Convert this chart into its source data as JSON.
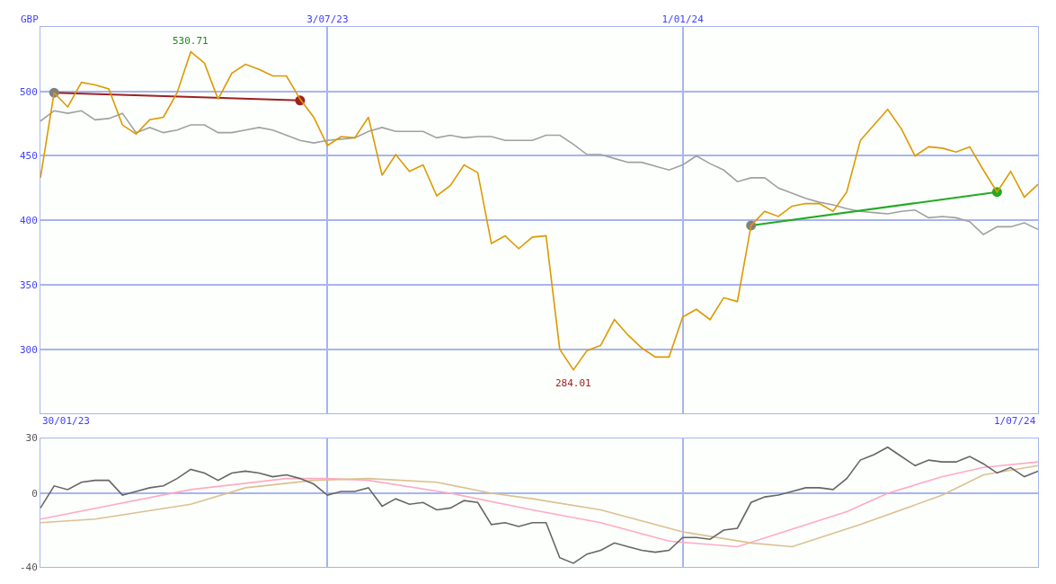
{
  "chart_data": [
    {
      "type": "line",
      "ylabel": "GBP",
      "x": [
        "2023-02-06",
        "2023-02-13",
        "2023-02-20",
        "2023-02-27",
        "2023-03-06",
        "2023-03-13",
        "2023-03-20",
        "2023-03-27",
        "2023-04-03",
        "2023-04-10",
        "2023-04-17",
        "2023-04-24",
        "2023-05-01",
        "2023-05-08",
        "2023-05-15",
        "2023-05-22",
        "2023-05-29",
        "2023-06-05",
        "2023-06-12",
        "2023-06-19",
        "2023-06-26",
        "2023-07-03",
        "2023-07-10",
        "2023-07-17",
        "2023-07-24",
        "2023-07-31",
        "2023-08-07",
        "2023-08-14",
        "2023-08-21",
        "2023-08-28",
        "2023-09-04",
        "2023-09-11",
        "2023-09-18",
        "2023-09-25",
        "2023-10-02",
        "2023-10-09",
        "2023-10-16",
        "2023-10-23",
        "2023-10-30",
        "2023-11-06",
        "2023-11-13",
        "2023-11-20",
        "2023-11-27",
        "2023-12-04",
        "2023-12-11",
        "2023-12-18",
        "2023-12-25",
        "2024-01-01",
        "2024-01-08",
        "2024-01-15",
        "2024-01-22",
        "2024-01-29",
        "2024-02-05",
        "2024-02-12",
        "2024-02-19",
        "2024-02-26",
        "2024-03-04",
        "2024-03-11",
        "2024-03-18",
        "2024-03-25",
        "2024-04-01",
        "2024-04-08",
        "2024-04-15",
        "2024-04-22",
        "2024-04-29",
        "2024-05-06",
        "2024-05-13",
        "2024-05-20",
        "2024-05-27",
        "2024-06-03",
        "2024-06-10",
        "2024-06-17",
        "2024-06-24",
        "2024-07-01"
      ],
      "series": [
        {
          "color": "#a0a0a0",
          "values": [
            477,
            485,
            483,
            485,
            478,
            479,
            483,
            468,
            472,
            468,
            470,
            474,
            474,
            468,
            468,
            470,
            472,
            470,
            466,
            462,
            460,
            462,
            463,
            464,
            469,
            472,
            469,
            469,
            469,
            464,
            466,
            464,
            465,
            465,
            462,
            462,
            462,
            466,
            466,
            459,
            451,
            451,
            448,
            445,
            445,
            442,
            439,
            443,
            450,
            444,
            439,
            430,
            433,
            433,
            425,
            421,
            417,
            414,
            412,
            409,
            407,
            406,
            405,
            407,
            408,
            402,
            403,
            402,
            399,
            389,
            395,
            395,
            398,
            393
          ]
        },
        {
          "color": "#a02020",
          "x": [
            "2023-02-13",
            "2023-06-19"
          ],
          "values": [
            499,
            493
          ],
          "marker": "circle",
          "colors": [
            "#808080",
            "#a02020"
          ]
        },
        {
          "color": "#22aa22",
          "x": [
            "2024-02-05",
            "2024-06-10"
          ],
          "values": [
            396,
            422
          ],
          "marker": "circle",
          "colors": [
            "#808080",
            "#22aa22"
          ]
        },
        {
          "color": "#dd9900",
          "values": [
            433,
            499,
            488,
            507,
            505,
            502,
            474,
            467,
            478,
            480,
            499,
            530.71,
            522,
            494,
            514,
            521,
            517,
            512,
            512,
            494,
            480,
            458,
            465,
            464,
            480,
            435,
            451,
            438,
            443,
            419,
            427,
            443,
            437,
            382,
            388,
            378,
            387,
            388,
            300,
            284.01,
            299,
            303,
            323,
            311,
            301,
            294,
            294,
            325,
            331,
            323,
            340,
            337,
            396,
            407,
            403,
            411,
            413,
            413,
            407,
            422,
            462,
            474,
            486,
            471,
            450,
            457,
            456,
            453,
            457,
            439,
            422,
            438,
            418,
            428
          ]
        }
      ],
      "xlim": [
        "2023-02-06",
        "2024-07-01"
      ],
      "xticks": [
        {
          "value": "2023-07-03",
          "label": "3/07/23"
        },
        {
          "value": "2024-01-01",
          "label": "1/01/24"
        }
      ],
      "ylim": [
        250,
        550
      ],
      "yticks": [
        300,
        350,
        400,
        450,
        500
      ],
      "grid": true,
      "annotations": [
        {
          "text": "530.71",
          "x": "2023-04-24",
          "y": 530.71
        },
        {
          "text": "284.01",
          "x": "2023-11-06",
          "y": 284.01
        },
        "30/01/23",
        "1/07/24"
      ]
    },
    {
      "type": "line",
      "x": [
        "2023-02-06",
        "2023-02-13",
        "2023-02-20",
        "2023-02-27",
        "2023-03-06",
        "2023-03-13",
        "2023-03-20",
        "2023-03-27",
        "2023-04-03",
        "2023-04-10",
        "2023-04-17",
        "2023-04-24",
        "2023-05-01",
        "2023-05-08",
        "2023-05-15",
        "2023-05-22",
        "2023-05-29",
        "2023-06-05",
        "2023-06-12",
        "2023-06-19",
        "2023-06-26",
        "2023-07-03",
        "2023-07-10",
        "2023-07-17",
        "2023-07-24",
        "2023-07-31",
        "2023-08-07",
        "2023-08-14",
        "2023-08-21",
        "2023-08-28",
        "2023-09-04",
        "2023-09-11",
        "2023-09-18",
        "2023-09-25",
        "2023-10-02",
        "2023-10-09",
        "2023-10-16",
        "2023-10-23",
        "2023-10-30",
        "2023-11-06",
        "2023-11-13",
        "2023-11-20",
        "2023-11-27",
        "2023-12-04",
        "2023-12-11",
        "2023-12-18",
        "2023-12-25",
        "2024-01-01",
        "2024-01-08",
        "2024-01-15",
        "2024-01-22",
        "2024-01-29",
        "2024-02-05",
        "2024-02-12",
        "2024-02-19",
        "2024-02-26",
        "2024-03-04",
        "2024-03-11",
        "2024-03-18",
        "2024-03-25",
        "2024-04-01",
        "2024-04-08",
        "2024-04-15",
        "2024-04-22",
        "2024-04-29",
        "2024-05-06",
        "2024-05-13",
        "2024-05-20",
        "2024-05-27",
        "2024-06-03",
        "2024-06-10",
        "2024-06-17",
        "2024-06-24",
        "2024-07-01"
      ],
      "series": [
        {
          "color": "#ffaac4",
          "x": [
            "2023-02-06",
            "2023-04-24",
            "2023-06-12",
            "2023-07-03",
            "2023-07-24",
            "2023-09-04",
            "2023-10-16",
            "2023-11-20",
            "2023-12-25",
            "2024-01-29",
            "2024-03-25",
            "2024-04-15",
            "2024-05-13",
            "2024-06-03",
            "2024-07-01"
          ],
          "values": [
            -14,
            2,
            8,
            8,
            7,
            0,
            -9,
            -16,
            -26,
            -29,
            -10,
            0,
            9,
            14,
            17
          ]
        },
        {
          "color": "#dcc090",
          "x": [
            "2023-02-06",
            "2023-03-06",
            "2023-04-24",
            "2023-05-22",
            "2023-06-26",
            "2023-07-24",
            "2023-08-28",
            "2023-09-25",
            "2023-10-16",
            "2023-11-20",
            "2024-01-01",
            "2024-02-05",
            "2024-02-26",
            "2024-04-01",
            "2024-05-13",
            "2024-06-03",
            "2024-07-01"
          ],
          "values": [
            -16,
            -14,
            -6,
            3,
            7,
            8,
            6,
            0,
            -3,
            -9,
            -21,
            -27,
            -29,
            -17,
            -1,
            10,
            15
          ]
        },
        {
          "color": "#666666",
          "values": [
            -8,
            4,
            2,
            6,
            7,
            7,
            -1,
            1,
            3,
            4,
            8,
            13,
            11,
            7,
            11,
            12,
            11,
            9,
            10,
            8,
            5,
            -1,
            1,
            1,
            3,
            -7,
            -3,
            -6,
            -5,
            -9,
            -8,
            -4,
            -5,
            -17,
            -16,
            -18,
            -16,
            -16,
            -35,
            -38,
            -33,
            -31,
            -27,
            -29,
            -31,
            -32,
            -31,
            -24,
            -24,
            -25,
            -20,
            -19,
            -5,
            -2,
            -1,
            1,
            3,
            3,
            2,
            8,
            18,
            21,
            25,
            20,
            15,
            18,
            17,
            17,
            20,
            16,
            11,
            14,
            9,
            12
          ]
        }
      ],
      "xlim": [
        "2023-02-06",
        "2024-07-01"
      ],
      "xticks": [
        {
          "value": "2023-07-03",
          "label": null
        },
        {
          "value": "2024-01-01",
          "label": null
        }
      ],
      "ylim": [
        -40,
        30
      ],
      "yticks": [
        30,
        0,
        -40
      ],
      "grid": true,
      "tick_labels": "y"
    }
  ]
}
